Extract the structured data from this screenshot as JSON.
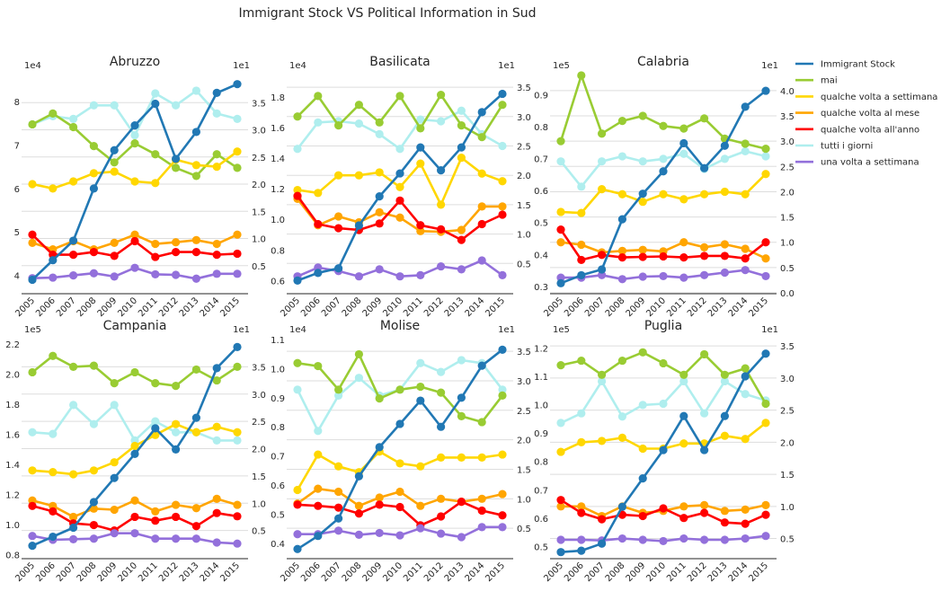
{
  "chart_data": {
    "type": "line",
    "title": "Immigrant Stock VS Political Information in Sud",
    "x": [
      "2005",
      "2006",
      "2007",
      "2008",
      "2009",
      "2010",
      "2011",
      "2012",
      "2013",
      "2014",
      "2015"
    ],
    "legend": {
      "placement": "right",
      "entries": [
        {
          "name": "Immigrant Stock",
          "color": "#2178b4"
        },
        {
          "name": "mai",
          "color": "#99cc33"
        },
        {
          "name": "qualche volta a settimana",
          "color": "#ffd700"
        },
        {
          "name": "qualche volta al mese",
          "color": "#ffa500"
        },
        {
          "name": "qualche volta all'anno",
          "color": "#ff0000"
        },
        {
          "name": "tutti i giorni",
          "color": "#afeeee"
        },
        {
          "name": "una volta a settimana",
          "color": "#9370db"
        }
      ]
    },
    "panels": [
      {
        "title": "Abruzzo",
        "left_axis": {
          "offset": "1e4",
          "ylim": [
            3.6,
            8.6
          ],
          "ticks": [
            4,
            5,
            6,
            7,
            8
          ],
          "tick_labels": [
            "4",
            "5",
            "6",
            "7",
            "8"
          ]
        },
        "right_axis": {
          "offset": "1e1",
          "ylim": [
            0.0,
            4.0
          ],
          "ticks": [
            0.5,
            1.0,
            1.5,
            2.0,
            2.5,
            3.0,
            3.5
          ],
          "tick_labels": [
            "0.5",
            "1.0",
            "1.5",
            "2.0",
            "2.5",
            "3.0",
            "3.5"
          ]
        },
        "immigrant_stock": [
          3.9,
          4.35,
          4.8,
          6.0,
          6.88,
          7.45,
          7.95,
          6.68,
          7.3,
          8.2,
          8.4
        ],
        "series": [
          {
            "name": "mai",
            "values": [
              3.1,
              3.3,
              3.05,
              2.7,
              2.4,
              2.75,
              2.55,
              2.3,
              2.15,
              2.55,
              2.3
            ]
          },
          {
            "name": "qualche volta a settimana",
            "values": [
              2.0,
              1.92,
              2.05,
              2.2,
              2.23,
              2.05,
              2.02,
              2.45,
              2.35,
              2.32,
              2.6
            ]
          },
          {
            "name": "qualche volta al mese",
            "values": [
              0.92,
              0.8,
              0.95,
              0.8,
              0.92,
              1.07,
              0.9,
              0.93,
              0.97,
              0.9,
              1.07
            ]
          },
          {
            "name": "qualche volta all'anno",
            "values": [
              1.07,
              0.7,
              0.7,
              0.75,
              0.68,
              0.95,
              0.66,
              0.75,
              0.75,
              0.7,
              0.72
            ]
          },
          {
            "name": "tutti i giorni",
            "values": [
              3.1,
              3.25,
              3.2,
              3.45,
              3.45,
              2.9,
              3.67,
              3.45,
              3.72,
              3.3,
              3.2
            ]
          },
          {
            "name": "una volta a settimana",
            "values": [
              0.27,
              0.28,
              0.32,
              0.36,
              0.3,
              0.46,
              0.34,
              0.33,
              0.26,
              0.35,
              0.35
            ]
          }
        ]
      },
      {
        "title": "Basilicata",
        "left_axis": {
          "offset": "1e4",
          "ylim": [
            0.52,
            1.94
          ],
          "ticks": [
            0.6,
            0.8,
            1.0,
            1.2,
            1.4,
            1.6,
            1.8
          ],
          "tick_labels": [
            "0.6",
            "0.8",
            "1.0",
            "1.2",
            "1.4",
            "1.6",
            "1.8"
          ]
        },
        "right_axis": {
          "offset": "1e1",
          "ylim": [
            0.0,
            3.7
          ],
          "ticks": [
            0.5,
            1.0,
            1.5,
            2.0,
            2.5,
            3.0,
            3.5
          ],
          "tick_labels": [
            "0.5",
            "1.0",
            "1.5",
            "2.0",
            "2.5",
            "3.0",
            "3.5"
          ]
        },
        "immigrant_stock": [
          0.6,
          0.65,
          0.68,
          0.96,
          1.15,
          1.3,
          1.47,
          1.32,
          1.47,
          1.7,
          1.82
        ],
        "series": [
          {
            "name": "mai",
            "values": [
              3.0,
              3.35,
              2.85,
              3.2,
              2.9,
              3.35,
              2.8,
              3.37,
              2.85,
              2.65,
              3.2
            ]
          },
          {
            "name": "qualche volta a settimana",
            "values": [
              1.75,
              1.7,
              2.0,
              2.0,
              2.05,
              1.8,
              2.2,
              1.5,
              2.3,
              2.03,
              1.9
            ]
          },
          {
            "name": "qualche volta al mese",
            "values": [
              1.6,
              1.15,
              1.3,
              1.2,
              1.37,
              1.28,
              1.05,
              1.04,
              1.07,
              1.47,
              1.47
            ]
          },
          {
            "name": "qualche volta all'anno",
            "values": [
              1.65,
              1.17,
              1.1,
              1.07,
              1.18,
              1.57,
              1.15,
              1.08,
              0.9,
              1.17,
              1.33
            ]
          },
          {
            "name": "tutti i giorni",
            "values": [
              2.45,
              2.9,
              2.92,
              2.88,
              2.7,
              2.45,
              2.95,
              2.92,
              3.1,
              2.7,
              2.5
            ]
          },
          {
            "name": "una volta a settimana",
            "values": [
              0.28,
              0.43,
              0.37,
              0.28,
              0.4,
              0.28,
              0.3,
              0.45,
              0.4,
              0.55,
              0.3
            ]
          }
        ]
      },
      {
        "title": "Calabria",
        "left_axis": {
          "offset": "1e5",
          "ylim": [
            0.28,
            0.96
          ],
          "ticks": [
            0.3,
            0.4,
            0.5,
            0.6,
            0.7,
            0.8,
            0.9
          ],
          "tick_labels": [
            "0.3",
            "0.4",
            "0.5",
            "0.6",
            "0.7",
            "0.8",
            "0.9"
          ]
        },
        "right_axis": {
          "offset": "1e1",
          "ylim": [
            0.0,
            4.3
          ],
          "ticks": [
            0.0,
            0.5,
            1.0,
            1.5,
            2.0,
            2.5,
            3.0,
            3.5,
            4.0
          ],
          "tick_labels": [
            "0.0",
            "0.5",
            "1.0",
            "1.5",
            "2.0",
            "2.5",
            "3.0",
            "3.5",
            "4.0"
          ]
        },
        "immigrant_stock": [
          0.31,
          0.335,
          0.353,
          0.51,
          0.59,
          0.66,
          0.748,
          0.67,
          0.74,
          0.862,
          0.912
        ],
        "series": [
          {
            "name": "mai",
            "values": [
              3.0,
              4.3,
              3.15,
              3.4,
              3.5,
              3.3,
              3.25,
              3.45,
              3.05,
              2.95,
              2.85
            ]
          },
          {
            "name": "qualche volta a settimana",
            "values": [
              1.6,
              1.58,
              2.05,
              1.95,
              1.8,
              1.95,
              1.85,
              1.95,
              2.0,
              1.95,
              2.35
            ]
          },
          {
            "name": "qualche volta al mese",
            "values": [
              1.0,
              0.95,
              0.8,
              0.83,
              0.85,
              0.82,
              1.0,
              0.9,
              0.96,
              0.87,
              0.68
            ]
          },
          {
            "name": "qualche volta all'anno",
            "values": [
              1.25,
              0.65,
              0.75,
              0.7,
              0.71,
              0.72,
              0.7,
              0.73,
              0.73,
              0.68,
              1.0
            ]
          },
          {
            "name": "tutti i giorni",
            "values": [
              2.6,
              2.1,
              2.6,
              2.7,
              2.6,
              2.65,
              2.75,
              2.45,
              2.65,
              2.8,
              2.7
            ]
          },
          {
            "name": "una volta a settimana",
            "values": [
              0.3,
              0.3,
              0.35,
              0.27,
              0.32,
              0.33,
              0.3,
              0.35,
              0.4,
              0.45,
              0.33
            ]
          }
        ]
      },
      {
        "title": "Campania",
        "left_axis": {
          "offset": "1e5",
          "ylim": [
            0.78,
            2.23
          ],
          "ticks": [
            0.8,
            1.0,
            1.2,
            1.4,
            1.6,
            1.8,
            2.0,
            2.2
          ],
          "tick_labels": [
            "0.8",
            "1.0",
            "1.2",
            "1.4",
            "1.6",
            "1.8",
            "2.0",
            "2.2"
          ]
        },
        "right_axis": {
          "offset": "1e1",
          "ylim": [
            0.0,
            4.0
          ],
          "ticks": [
            0.5,
            1.0,
            1.5,
            2.0,
            2.5,
            3.0,
            3.5
          ],
          "tick_labels": [
            "0.5",
            "1.0",
            "1.5",
            "2.0",
            "2.5",
            "3.0",
            "3.5"
          ]
        },
        "immigrant_stock": [
          0.86,
          0.92,
          0.98,
          1.15,
          1.31,
          1.47,
          1.64,
          1.5,
          1.71,
          2.04,
          2.18
        ],
        "series": [
          {
            "name": "mai",
            "values": [
              3.4,
              3.7,
              3.5,
              3.52,
              3.2,
              3.4,
              3.2,
              3.15,
              3.45,
              3.25,
              3.5
            ]
          },
          {
            "name": "qualche volta a settimana",
            "values": [
              1.6,
              1.57,
              1.53,
              1.6,
              1.75,
              2.05,
              2.25,
              2.45,
              2.3,
              2.4,
              2.3
            ]
          },
          {
            "name": "qualche volta al mese",
            "values": [
              1.05,
              0.95,
              0.75,
              0.9,
              0.88,
              1.05,
              0.85,
              0.97,
              0.91,
              1.08,
              0.97
            ]
          },
          {
            "name": "qualche volta all'anno",
            "values": [
              0.95,
              0.85,
              0.63,
              0.6,
              0.5,
              0.75,
              0.68,
              0.75,
              0.58,
              0.82,
              0.76
            ]
          },
          {
            "name": "tutti i giorni",
            "values": [
              2.3,
              2.27,
              2.8,
              2.45,
              2.8,
              2.15,
              2.5,
              2.3,
              2.3,
              2.15,
              2.15
            ]
          },
          {
            "name": "una volta a settimana",
            "values": [
              0.4,
              0.33,
              0.34,
              0.35,
              0.45,
              0.45,
              0.35,
              0.35,
              0.35,
              0.28,
              0.26
            ]
          }
        ]
      },
      {
        "title": "Molise",
        "left_axis": {
          "offset": "1e4",
          "ylim": [
            0.35,
            1.1
          ],
          "ticks": [
            0.4,
            0.5,
            0.6,
            0.7,
            0.8,
            0.9,
            1.0,
            1.1
          ],
          "tick_labels": [
            "0.4",
            "0.5",
            "0.6",
            "0.7",
            "0.8",
            "0.9",
            "1.0",
            "1.1"
          ]
        },
        "right_axis": {
          "offset": "1e1",
          "ylim": [
            0.0,
            3.7
          ],
          "ticks": [
            0.5,
            1.0,
            1.5,
            2.0,
            2.5,
            3.0,
            3.5
          ],
          "tick_labels": [
            "0.5",
            "1.0",
            "1.5",
            "2.0",
            "2.5",
            "3.0",
            "3.5"
          ]
        },
        "immigrant_stock": [
          0.38,
          0.425,
          0.485,
          0.63,
          0.73,
          0.81,
          0.89,
          0.8,
          0.9,
          1.01,
          1.065
        ],
        "series": [
          {
            "name": "mai",
            "values": [
              3.3,
              3.25,
              2.85,
              3.45,
              2.7,
              2.85,
              2.9,
              2.8,
              2.4,
              2.3,
              2.75
            ]
          },
          {
            "name": "qualche volta a settimana",
            "values": [
              1.15,
              1.75,
              1.55,
              1.45,
              1.8,
              1.6,
              1.55,
              1.7,
              1.7,
              1.7,
              1.75
            ]
          },
          {
            "name": "qualche volta al mese",
            "values": [
              0.92,
              1.17,
              1.12,
              0.88,
              1.02,
              1.12,
              0.88,
              1.0,
              0.95,
              1.0,
              1.08
            ]
          },
          {
            "name": "qualche volta all'anno",
            "values": [
              0.9,
              0.88,
              0.85,
              0.75,
              0.9,
              0.86,
              0.55,
              0.7,
              0.95,
              0.8,
              0.72
            ]
          },
          {
            "name": "tutti i giorni",
            "values": [
              2.85,
              2.15,
              2.75,
              3.05,
              2.75,
              2.85,
              3.3,
              3.15,
              3.35,
              3.3,
              2.85
            ]
          },
          {
            "name": "una volta a settimana",
            "values": [
              0.4,
              0.4,
              0.46,
              0.39,
              0.42,
              0.38,
              0.5,
              0.41,
              0.35,
              0.52,
              0.52
            ]
          }
        ]
      },
      {
        "title": "Puglia",
        "left_axis": {
          "offset": "1e5",
          "ylim": [
            0.46,
            1.23
          ],
          "ticks": [
            0.5,
            0.6,
            0.7,
            0.8,
            0.9,
            1.0,
            1.1,
            1.2
          ],
          "tick_labels": [
            "0.5",
            "0.6",
            "0.7",
            "0.8",
            "0.9",
            "1.0",
            "1.1",
            "1.2"
          ]
        },
        "right_axis": {
          "offset": "1e1",
          "ylim": [
            0.2,
            3.6
          ],
          "ticks": [
            0.5,
            1.0,
            1.5,
            2.0,
            2.5,
            3.0,
            3.5
          ],
          "tick_labels": [
            "0.5",
            "1.0",
            "1.5",
            "2.0",
            "2.5",
            "3.0",
            "3.5"
          ]
        },
        "immigrant_stock": [
          0.48,
          0.485,
          0.51,
          0.64,
          0.74,
          0.84,
          0.96,
          0.84,
          0.96,
          1.1,
          1.18
        ],
        "series": [
          {
            "name": "mai",
            "values": [
              3.2,
              3.27,
              3.05,
              3.27,
              3.4,
              3.23,
              3.05,
              3.37,
              3.05,
              3.15,
              2.6
            ]
          },
          {
            "name": "qualche volta a settimana",
            "values": [
              1.85,
              2.0,
              2.02,
              2.07,
              1.9,
              1.9,
              1.98,
              1.98,
              2.1,
              2.05,
              2.3
            ]
          },
          {
            "name": "qualche volta al mese",
            "values": [
              1.0,
              1.0,
              0.85,
              1.0,
              0.9,
              0.93,
              1.0,
              1.02,
              0.93,
              0.95,
              1.02
            ]
          },
          {
            "name": "qualche volta all'anno",
            "values": [
              1.1,
              0.9,
              0.8,
              0.87,
              0.85,
              0.97,
              0.82,
              0.9,
              0.75,
              0.73,
              0.87
            ]
          },
          {
            "name": "tutti i giorni",
            "values": [
              2.3,
              2.45,
              2.95,
              2.4,
              2.58,
              2.6,
              2.95,
              2.45,
              2.95,
              2.75,
              2.65
            ]
          },
          {
            "name": "una volta a settimana",
            "values": [
              0.48,
              0.48,
              0.47,
              0.5,
              0.48,
              0.46,
              0.5,
              0.48,
              0.48,
              0.5,
              0.54
            ]
          }
        ]
      }
    ]
  }
}
